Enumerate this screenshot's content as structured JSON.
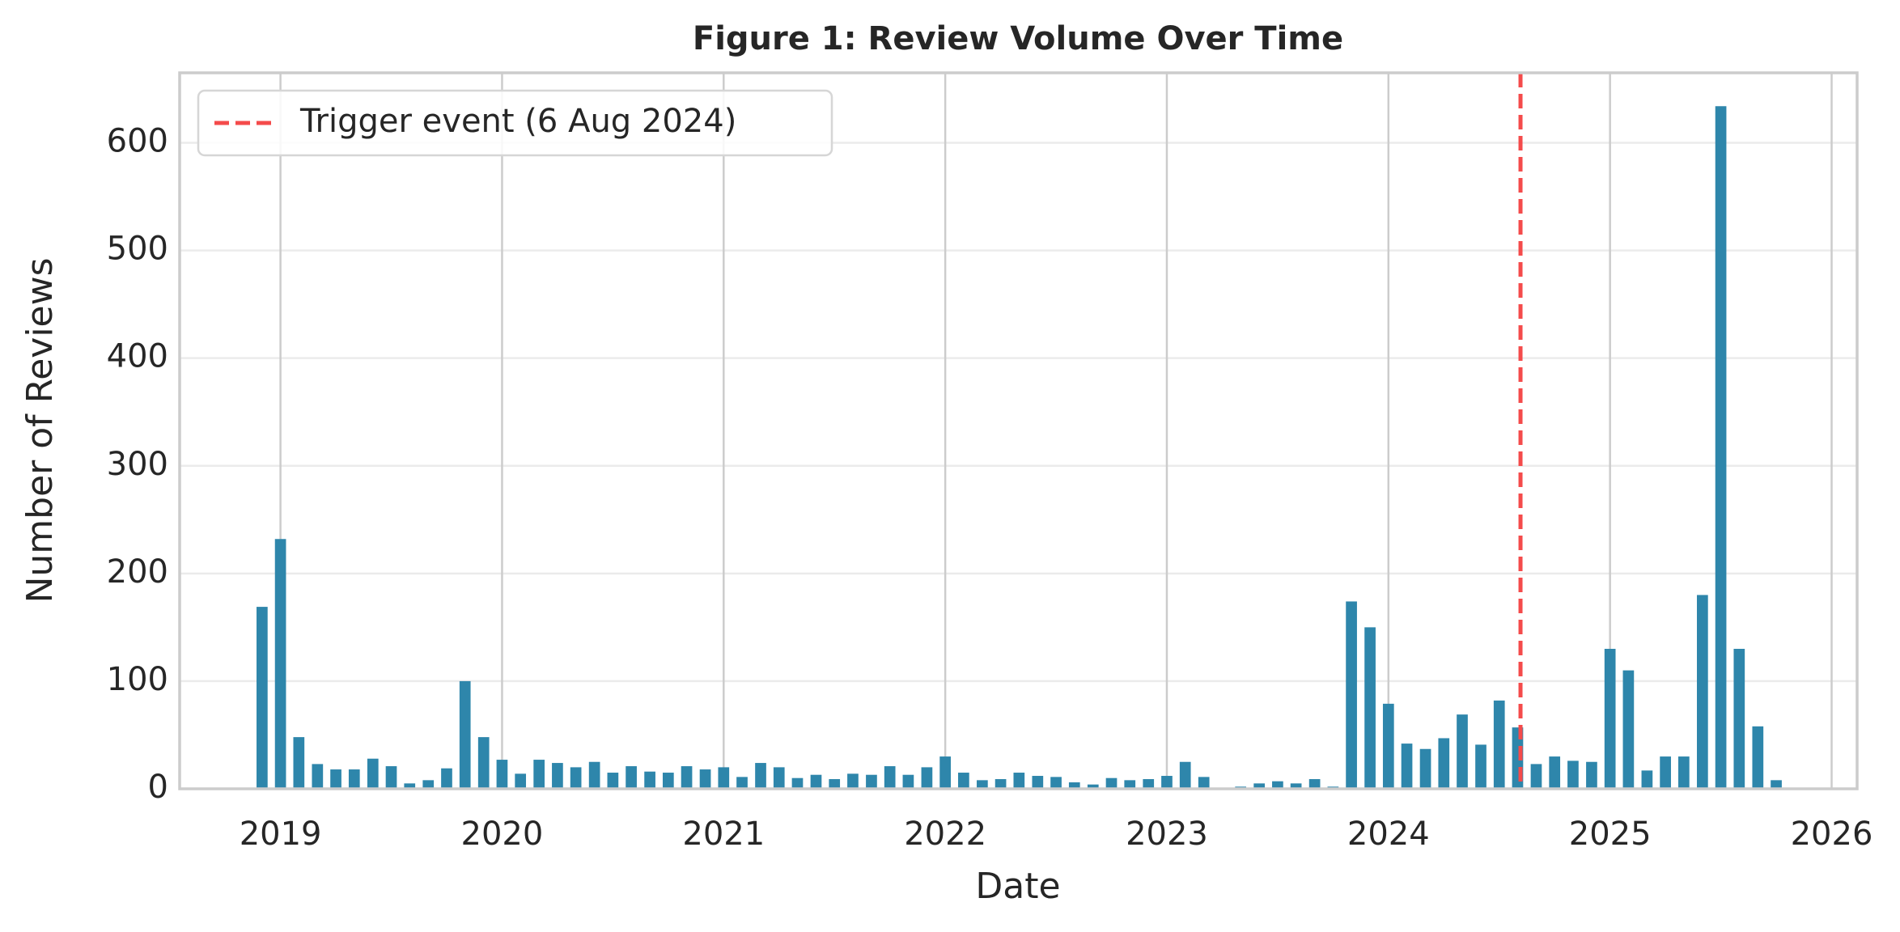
{
  "chart_data": {
    "type": "bar",
    "title": "Figure 1: Review Volume Over Time",
    "x_label": "Date",
    "y_label": "Number of Reviews",
    "x": [
      2018.917,
      2019.0,
      2019.083,
      2019.167,
      2019.25,
      2019.333,
      2019.417,
      2019.5,
      2019.583,
      2019.667,
      2019.75,
      2019.833,
      2019.917,
      2020.0,
      2020.083,
      2020.167,
      2020.25,
      2020.333,
      2020.417,
      2020.5,
      2020.583,
      2020.667,
      2020.75,
      2020.833,
      2020.917,
      2021.0,
      2021.083,
      2021.167,
      2021.25,
      2021.333,
      2021.417,
      2021.5,
      2021.583,
      2021.667,
      2021.75,
      2021.833,
      2021.917,
      2022.0,
      2022.083,
      2022.167,
      2022.25,
      2022.333,
      2022.417,
      2022.5,
      2022.583,
      2022.667,
      2022.75,
      2022.833,
      2022.917,
      2023.0,
      2023.083,
      2023.167,
      2023.25,
      2023.333,
      2023.417,
      2023.5,
      2023.583,
      2023.667,
      2023.75,
      2023.833,
      2023.917,
      2024.0,
      2024.083,
      2024.167,
      2024.25,
      2024.333,
      2024.417,
      2024.5,
      2024.583,
      2024.667,
      2024.75,
      2024.833,
      2024.917,
      2025.0,
      2025.083,
      2025.167,
      2025.25,
      2025.333,
      2025.417,
      2025.5,
      2025.583,
      2025.667,
      2025.75
    ],
    "values": [
      169,
      232,
      48,
      23,
      18,
      18,
      28,
      21,
      5,
      8,
      19,
      100,
      48,
      27,
      14,
      27,
      24,
      20,
      25,
      15,
      21,
      16,
      15,
      21,
      18,
      20,
      11,
      24,
      20,
      10,
      13,
      9,
      14,
      13,
      21,
      13,
      20,
      30,
      15,
      8,
      9,
      15,
      12,
      11,
      6,
      4,
      10,
      8,
      9,
      12,
      25,
      11,
      0,
      2,
      5,
      7,
      5,
      9,
      2,
      174,
      150,
      79,
      42,
      37,
      47,
      69,
      41,
      82,
      57,
      23,
      30,
      26,
      25,
      130,
      110,
      17,
      30,
      30,
      180,
      634,
      130,
      58,
      8
    ],
    "color": "#2e86ab",
    "xlim": [
      2018.545,
      2026.115
    ],
    "xticks": [
      2019,
      2020,
      2021,
      2022,
      2023,
      2024,
      2025,
      2026
    ],
    "ylim": [
      0,
      665
    ],
    "yticks": [
      0,
      100,
      200,
      300,
      400,
      500,
      600
    ],
    "grid": true,
    "annotations": [
      {
        "x": 2024.596,
        "label": "Trigger event (6 Aug 2024)",
        "color": "#f44b4b",
        "style": "dashed"
      }
    ],
    "legend": "upper left"
  }
}
